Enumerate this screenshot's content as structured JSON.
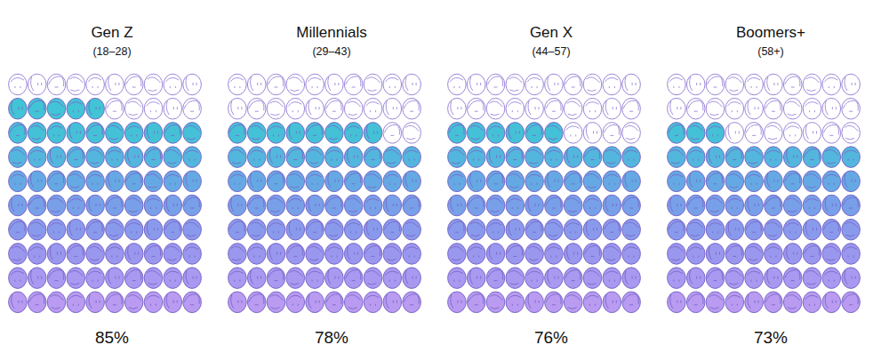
{
  "chart_data": {
    "type": "waffle",
    "categories": [
      "Gen Z",
      "Millennials",
      "Gen X",
      "Boomers+"
    ],
    "subtitles": [
      "(18–28)",
      "(29–43)",
      "(44–57)",
      "(58+)"
    ],
    "values": [
      85,
      78,
      76,
      73
    ],
    "value_labels": [
      "85%",
      "78%",
      "76%",
      "73%"
    ],
    "data_labels": true
  }
}
